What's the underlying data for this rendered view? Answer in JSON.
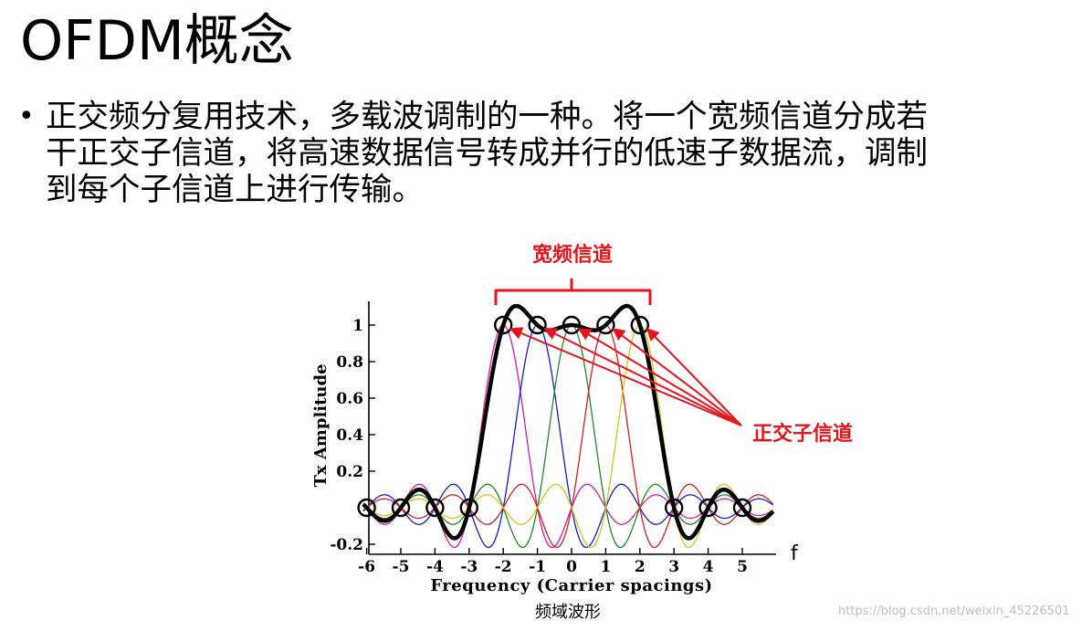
{
  "slide": {
    "title": "OFDM概念",
    "bullet_lines": [
      "正交频分复用技术，多载波调制的一种。将一个宽频信道分成若",
      "干正交子信道，将高速数据信号转成并行的低速子数据流，调制",
      "到每个子信道上进行传输。"
    ]
  },
  "figure": {
    "caption": "频域波形",
    "watermark": "https://blog.csdn.net/weixin_45226501",
    "annotations": {
      "wide_channel": "宽频信道",
      "orthogonal_subchannels": "正交子信道",
      "f_label": "f",
      "color": "#e8141c"
    }
  },
  "chart_data": {
    "type": "line",
    "xlabel": "Frequency (Carrier spacings)",
    "ylabel": "Tx Amplitude",
    "xlim": [
      -6,
      6
    ],
    "ylim": [
      -0.25,
      1.15
    ],
    "x_ticks": [
      "-6",
      "-5",
      "-4",
      "-3",
      "-2",
      "-1",
      "0",
      "1",
      "2",
      "3",
      "4",
      "5"
    ],
    "x_tick_values": [
      -6,
      -5,
      -4,
      -3,
      -2,
      -1,
      0,
      1,
      2,
      3,
      4,
      5
    ],
    "y_ticks": [
      "-0.2",
      "0.2",
      "0.4",
      "0.6",
      "0.8",
      "1"
    ],
    "y_tick_values": [
      -0.2,
      0.2,
      0.4,
      0.6,
      0.8,
      1
    ],
    "series": [
      {
        "center": -2,
        "color": "#e0179a"
      },
      {
        "center": -1,
        "color": "#1a1ad8"
      },
      {
        "center": 0,
        "color": "#1f8a1f"
      },
      {
        "center": 1,
        "color": "#d81c1c"
      },
      {
        "center": 2,
        "color": "#d8c21a"
      }
    ],
    "sum_series": {
      "color": "#000000"
    },
    "markers_x": [
      -6,
      -5,
      -4,
      -3,
      -2,
      -1,
      0,
      1,
      2,
      3,
      4,
      5
    ]
  }
}
